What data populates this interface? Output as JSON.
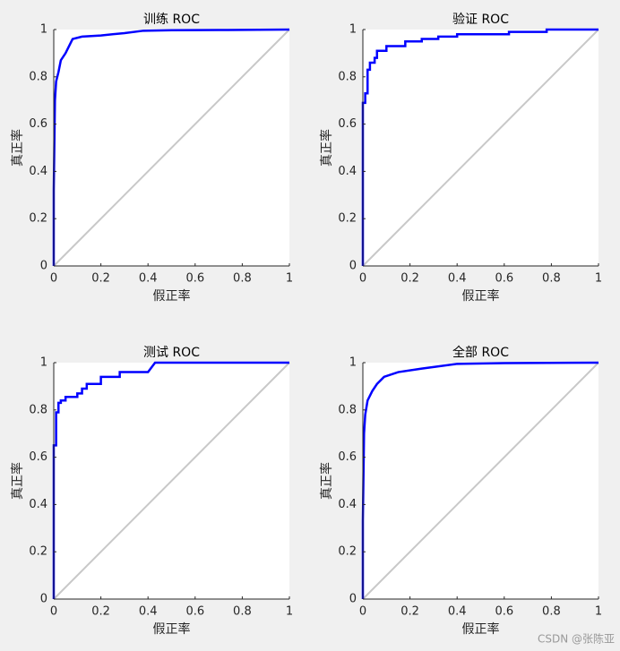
{
  "chart_data": [
    {
      "type": "line",
      "title": "训练 ROC",
      "xlabel": "假正率",
      "ylabel": "真正率",
      "xlim": [
        0,
        1
      ],
      "ylim": [
        0,
        1
      ],
      "xticks": [
        0,
        0.2,
        0.4,
        0.6,
        0.8,
        1
      ],
      "yticks": [
        0,
        0.2,
        0.4,
        0.6,
        0.8,
        1
      ],
      "grid": false,
      "series": [
        {
          "color": "#0000ff",
          "x": [
            0,
            0,
            0.005,
            0.01,
            0.02,
            0.03,
            0.05,
            0.07,
            0.08,
            0.12,
            0.2,
            0.3,
            0.38,
            0.5,
            0.7,
            1
          ],
          "values": [
            0,
            0.32,
            0.7,
            0.78,
            0.82,
            0.87,
            0.9,
            0.94,
            0.96,
            0.97,
            0.975,
            0.985,
            0.995,
            0.997,
            0.998,
            1
          ]
        },
        {
          "color": "#c8c8c8",
          "x": [
            0,
            1
          ],
          "values": [
            0,
            1
          ]
        }
      ]
    },
    {
      "type": "line",
      "title": "验证 ROC",
      "xlabel": "假正率",
      "ylabel": "真正率",
      "xlim": [
        0,
        1
      ],
      "ylim": [
        0,
        1
      ],
      "xticks": [
        0,
        0.2,
        0.4,
        0.6,
        0.8,
        1
      ],
      "yticks": [
        0,
        0.2,
        0.4,
        0.6,
        0.8,
        1
      ],
      "grid": false,
      "series": [
        {
          "color": "#0000ff",
          "x": [
            0,
            0,
            0.01,
            0.01,
            0.02,
            0.02,
            0.03,
            0.03,
            0.05,
            0.05,
            0.06,
            0.06,
            0.1,
            0.1,
            0.18,
            0.18,
            0.25,
            0.25,
            0.32,
            0.32,
            0.4,
            0.4,
            0.62,
            0.62,
            0.78,
            0.78,
            1
          ],
          "values": [
            0,
            0.69,
            0.69,
            0.73,
            0.73,
            0.83,
            0.83,
            0.86,
            0.86,
            0.88,
            0.88,
            0.91,
            0.91,
            0.93,
            0.93,
            0.95,
            0.95,
            0.96,
            0.96,
            0.97,
            0.97,
            0.98,
            0.98,
            0.99,
            0.99,
            1,
            1
          ]
        },
        {
          "color": "#c8c8c8",
          "x": [
            0,
            1
          ],
          "values": [
            0,
            1
          ]
        }
      ]
    },
    {
      "type": "line",
      "title": "测试 ROC",
      "xlabel": "假正率",
      "ylabel": "真正率",
      "xlim": [
        0,
        1
      ],
      "ylim": [
        0,
        1
      ],
      "xticks": [
        0,
        0.2,
        0.4,
        0.6,
        0.8,
        1
      ],
      "yticks": [
        0,
        0.2,
        0.4,
        0.6,
        0.8,
        1
      ],
      "grid": false,
      "series": [
        {
          "color": "#0000ff",
          "x": [
            0,
            0,
            0.01,
            0.01,
            0.02,
            0.02,
            0.03,
            0.03,
            0.05,
            0.05,
            0.1,
            0.1,
            0.12,
            0.12,
            0.14,
            0.14,
            0.2,
            0.2,
            0.28,
            0.28,
            0.4,
            0.43,
            1
          ],
          "values": [
            0,
            0.65,
            0.65,
            0.79,
            0.79,
            0.83,
            0.83,
            0.84,
            0.84,
            0.855,
            0.855,
            0.87,
            0.87,
            0.89,
            0.89,
            0.91,
            0.91,
            0.94,
            0.94,
            0.96,
            0.96,
            1,
            1
          ]
        },
        {
          "color": "#c8c8c8",
          "x": [
            0,
            1
          ],
          "values": [
            0,
            1
          ]
        }
      ]
    },
    {
      "type": "line",
      "title": "全部 ROC",
      "xlabel": "假正率",
      "ylabel": "真正率",
      "xlim": [
        0,
        1
      ],
      "ylim": [
        0,
        1
      ],
      "xticks": [
        0,
        0.2,
        0.4,
        0.6,
        0.8,
        1
      ],
      "yticks": [
        0,
        0.2,
        0.4,
        0.6,
        0.8,
        1
      ],
      "grid": false,
      "series": [
        {
          "color": "#0000ff",
          "x": [
            0,
            0,
            0.005,
            0.01,
            0.02,
            0.04,
            0.06,
            0.09,
            0.15,
            0.25,
            0.4,
            0.6,
            1
          ],
          "values": [
            0,
            0.33,
            0.7,
            0.78,
            0.84,
            0.88,
            0.91,
            0.94,
            0.96,
            0.975,
            0.995,
            0.998,
            1
          ]
        },
        {
          "color": "#c8c8c8",
          "x": [
            0,
            1
          ],
          "values": [
            0,
            1
          ]
        }
      ]
    }
  ],
  "watermark": "CSDN @张陈亚"
}
